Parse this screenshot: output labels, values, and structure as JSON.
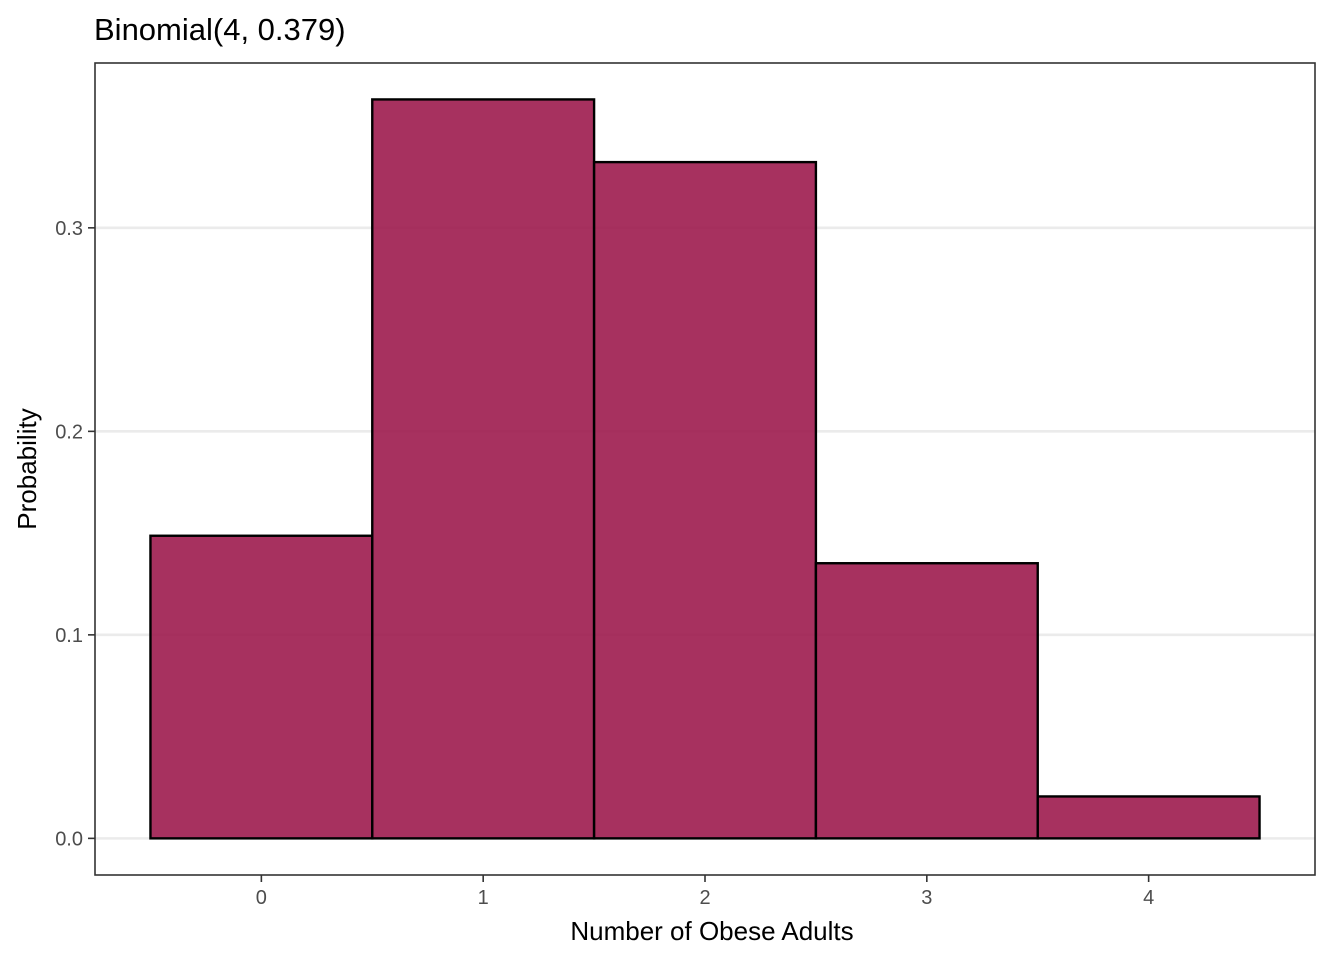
{
  "chart_data": {
    "type": "bar",
    "title": "Binomial(4, 0.379)",
    "xlabel": "Number of Obese Adults",
    "ylabel": "Probability",
    "categories": [
      "0",
      "1",
      "2",
      "3",
      "4"
    ],
    "x": [
      0,
      1,
      2,
      3,
      4
    ],
    "values": [
      0.1487,
      0.3631,
      0.3323,
      0.1352,
      0.0206
    ],
    "xticks": [
      "0",
      "1",
      "2",
      "3",
      "4"
    ],
    "yticks": [
      "0.0",
      "0.1",
      "0.2",
      "0.3"
    ],
    "ytick_values": [
      0.0,
      0.1,
      0.2,
      0.3
    ],
    "xlim": [
      -0.75,
      4.75
    ],
    "ylim": [
      -0.018,
      0.381
    ],
    "grid": true,
    "legend": "none",
    "bar_color": "#9D1B4E",
    "bar_opacity": 0.9,
    "bar_border_color": "#000000"
  }
}
